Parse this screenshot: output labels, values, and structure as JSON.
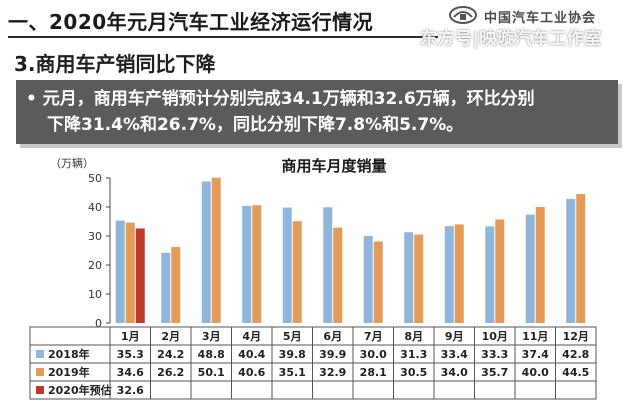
{
  "slide": {
    "title": "一、2020年元月汽车工业经济运行情况",
    "subtitle": "3.商用车产销同比下降",
    "summary_line1": "• 元月，商用车产销预计分别完成34.1万辆和32.6万辆，环比分别",
    "summary_line2": "下降31.4%和26.7%，同比分别下降7.8%和5.7%。",
    "logo_text": "中国汽车工业协会",
    "watermark": "东方号|映璇汽车工作室"
  },
  "colors": {
    "series_2018": "#8fb6da",
    "series_2019": "#e59b58",
    "series_2020": "#c0392b",
    "summary_bg": "#5b5b5b"
  },
  "chart_data": {
    "type": "bar",
    "title": "商用车月度销量",
    "ylabel": "（万辆）",
    "xlabel": "",
    "ylim": [
      0,
      50
    ],
    "yticks": [
      "0",
      "10",
      "20",
      "30",
      "40",
      "50"
    ],
    "grid": false,
    "legend": "table-rows-left",
    "categories": [
      "1月",
      "2月",
      "3月",
      "4月",
      "5月",
      "6月",
      "7月",
      "8月",
      "9月",
      "10月",
      "11月",
      "12月"
    ],
    "series": [
      {
        "name": "2018年",
        "values": [
          35.3,
          24.2,
          48.8,
          40.4,
          39.8,
          39.9,
          30.0,
          31.3,
          33.4,
          33.3,
          37.4,
          42.8
        ],
        "labels": [
          "35.3",
          "24.2",
          "48.8",
          "40.4",
          "39.8",
          "39.9",
          "30.0",
          "31.3",
          "33.4",
          "33.3",
          "37.4",
          "42.8"
        ]
      },
      {
        "name": "2019年",
        "values": [
          34.6,
          26.2,
          50.1,
          40.6,
          35.1,
          32.9,
          28.1,
          30.5,
          34.0,
          35.7,
          40.0,
          44.5
        ],
        "labels": [
          "34.6",
          "26.2",
          "50.1",
          "40.6",
          "35.1",
          "32.9",
          "28.1",
          "30.5",
          "34.0",
          "35.7",
          "40.0",
          "44.5"
        ]
      },
      {
        "name": "2020年预估",
        "values": [
          32.6,
          null,
          null,
          null,
          null,
          null,
          null,
          null,
          null,
          null,
          null,
          null
        ],
        "labels": [
          "32.6",
          "",
          "",
          "",
          "",
          "",
          "",
          "",
          "",
          "",
          "",
          ""
        ]
      }
    ]
  }
}
